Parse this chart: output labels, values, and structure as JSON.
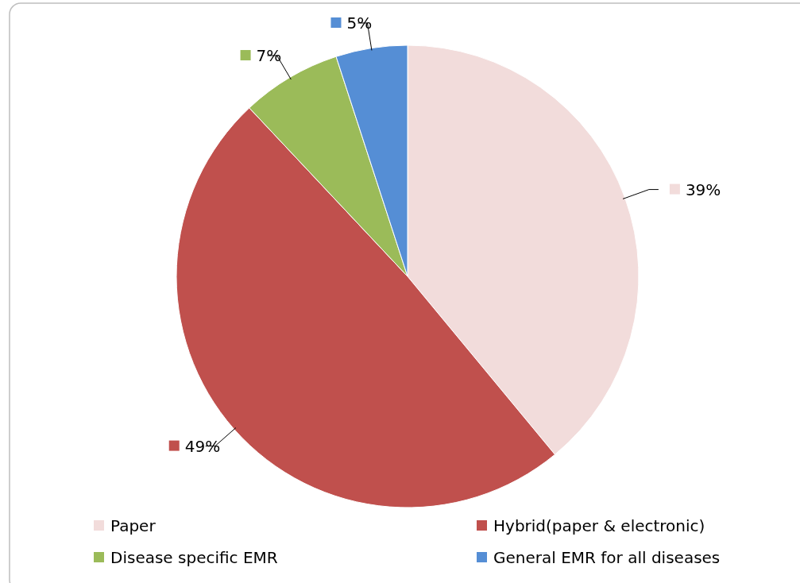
{
  "chart_data": {
    "type": "pie",
    "categories": [
      "Paper",
      "Hybrid(paper & electronic)",
      "Disease specific EMR",
      "General EMR for all diseases"
    ],
    "values": [
      39,
      49,
      7,
      5
    ],
    "colors": [
      "#f2dcdb",
      "#c0504d",
      "#9bbb59",
      "#558ed5"
    ],
    "value_labels": [
      "39%",
      "49%",
      "7%",
      "5%"
    ],
    "legend": "bottom"
  }
}
